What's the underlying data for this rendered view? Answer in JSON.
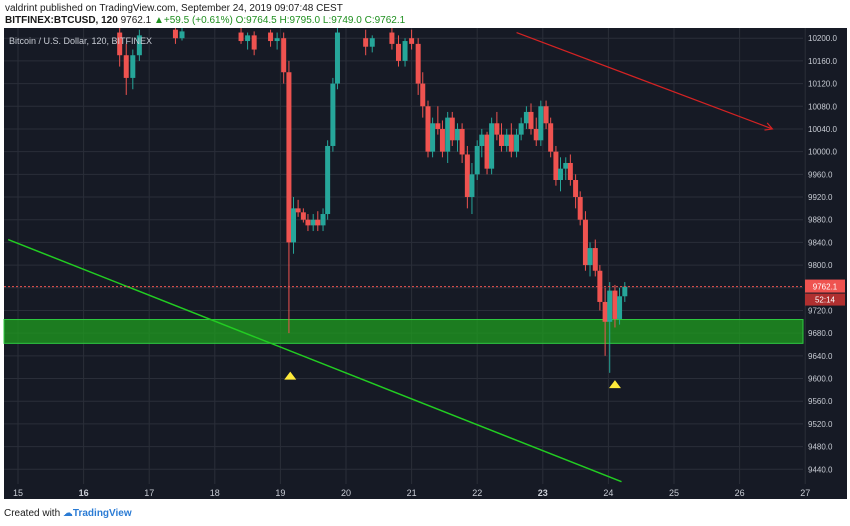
{
  "header": {
    "author": "valdrint",
    "published_text": " published on TradingView.com, September 24, 2019 09:07:48 CEST",
    "symbol": "BITFINEX:BTCUSD, 120",
    "last": "9762.1",
    "change": "+59.5 (+0.61%)",
    "open": "O:9764.5",
    "high": "H:9795.0",
    "low": "L:9749.0",
    "close": "C:9762.1"
  },
  "footer": {
    "created_with": "Created with",
    "brand": "TradingView"
  },
  "colors": {
    "background": "#161a25",
    "grid": "#2a2e39",
    "bull": "#26a69a",
    "bear": "#ef5350",
    "trendline": "#22cc22",
    "support_zone": "#1f9d1f",
    "arrow": "#d42323",
    "marker": "#ffeb3b",
    "price_line": "#ef5350",
    "axis_text": "#c8ccd4"
  },
  "chart_data": {
    "type": "candlestick",
    "title": "Bitcoin / U.S. Dollar, 120, BITFINEX",
    "x_ticks": [
      "15",
      "16",
      "17",
      "18",
      "19",
      "20",
      "21",
      "22",
      "23",
      "24",
      "25",
      "26",
      "27"
    ],
    "y_ticks": [
      "10200.0",
      "10160.0",
      "10120.0",
      "10080.0",
      "10040.0",
      "10000.0",
      "9960.0",
      "9920.0",
      "9880.0",
      "9840.0",
      "9800.0",
      "9760.0",
      "9720.0",
      "9680.0",
      "9640.0",
      "9600.0",
      "9560.0",
      "9520.0",
      "9480.0",
      "9440.0"
    ],
    "ylim": [
      9414,
      10218
    ],
    "last_price": "9762.1",
    "countdown": "52:14",
    "support_zone": [
      9662,
      9704
    ],
    "trendline": [
      [
        14.85,
        9845
      ],
      [
        24.2,
        9418
      ]
    ],
    "arrow": [
      [
        22.6,
        10210
      ],
      [
        26.5,
        10040
      ]
    ],
    "markers": [
      [
        19.15,
        9605
      ],
      [
        24.1,
        9590
      ]
    ],
    "candles": [
      [
        16.55,
        10210,
        10225,
        10150,
        10170
      ],
      [
        16.65,
        10170,
        10190,
        10100,
        10130
      ],
      [
        16.75,
        10130,
        10180,
        10110,
        10170
      ],
      [
        16.85,
        10170,
        10215,
        10160,
        10205
      ],
      [
        17.4,
        10215,
        10222,
        10190,
        10200
      ],
      [
        17.5,
        10200,
        10218,
        10196,
        10212
      ],
      [
        18.4,
        10210,
        10218,
        10190,
        10195
      ],
      [
        18.5,
        10195,
        10210,
        10180,
        10205
      ],
      [
        18.6,
        10205,
        10212,
        10170,
        10180
      ],
      [
        18.85,
        10210,
        10215,
        10185,
        10195
      ],
      [
        18.95,
        10195,
        10210,
        10180,
        10200
      ],
      [
        19.05,
        10200,
        10210,
        10120,
        10140
      ],
      [
        19.13,
        10140,
        10160,
        9680,
        9840
      ],
      [
        19.2,
        9840,
        9920,
        9820,
        9900
      ],
      [
        19.27,
        9900,
        9915,
        9885,
        9893
      ],
      [
        19.35,
        9893,
        9900,
        9875,
        9880
      ],
      [
        19.42,
        9880,
        9890,
        9860,
        9870
      ],
      [
        19.5,
        9870,
        9890,
        9860,
        9880
      ],
      [
        19.57,
        9880,
        9895,
        9860,
        9870
      ],
      [
        19.65,
        9870,
        9900,
        9860,
        9890
      ],
      [
        19.72,
        9890,
        10020,
        9880,
        10010
      ],
      [
        19.8,
        10010,
        10130,
        10000,
        10120
      ],
      [
        19.87,
        10120,
        10220,
        10110,
        10210
      ],
      [
        20.3,
        10200,
        10215,
        10170,
        10185
      ],
      [
        20.4,
        10185,
        10205,
        10175,
        10200
      ],
      [
        20.7,
        10210,
        10220,
        10180,
        10190
      ],
      [
        20.8,
        10190,
        10205,
        10150,
        10160
      ],
      [
        20.9,
        10160,
        10200,
        10150,
        10195
      ],
      [
        21.0,
        10200,
        10215,
        10180,
        10190
      ],
      [
        21.1,
        10190,
        10200,
        10100,
        10120
      ],
      [
        21.17,
        10120,
        10140,
        10060,
        10080
      ],
      [
        21.25,
        10080,
        10090,
        9990,
        10000
      ],
      [
        21.32,
        10000,
        10060,
        9990,
        10050
      ],
      [
        21.4,
        10050,
        10080,
        10030,
        10040
      ],
      [
        21.47,
        10040,
        10055,
        9990,
        10000
      ],
      [
        21.55,
        10000,
        10070,
        9980,
        10060
      ],
      [
        21.62,
        10060,
        10070,
        10010,
        10020
      ],
      [
        21.7,
        10020,
        10050,
        10000,
        10040
      ],
      [
        21.77,
        10040,
        10050,
        9980,
        9995
      ],
      [
        21.85,
        9995,
        10010,
        9900,
        9920
      ],
      [
        21.92,
        9920,
        9980,
        9890,
        9960
      ],
      [
        22.0,
        9960,
        10020,
        9950,
        10010
      ],
      [
        22.07,
        10010,
        10040,
        9990,
        10030
      ],
      [
        22.15,
        10030,
        10035,
        9960,
        9970
      ],
      [
        22.22,
        9970,
        10060,
        9960,
        10050
      ],
      [
        22.3,
        10050,
        10070,
        10020,
        10030
      ],
      [
        22.37,
        10030,
        10050,
        10000,
        10010
      ],
      [
        22.45,
        10010,
        10040,
        10000,
        10030
      ],
      [
        22.52,
        10030,
        10050,
        9990,
        10000
      ],
      [
        22.6,
        10000,
        10040,
        9990,
        10030
      ],
      [
        22.67,
        10030,
        10060,
        10020,
        10050
      ],
      [
        22.75,
        10050,
        10080,
        10040,
        10070
      ],
      [
        22.82,
        10070,
        10085,
        10030,
        10040
      ],
      [
        22.9,
        10040,
        10060,
        10010,
        10020
      ],
      [
        22.97,
        10020,
        10090,
        10010,
        10080
      ],
      [
        23.05,
        10080,
        10090,
        10040,
        10050
      ],
      [
        23.12,
        10050,
        10060,
        9990,
        10000
      ],
      [
        23.2,
        10000,
        10010,
        9940,
        9950
      ],
      [
        23.27,
        9950,
        9990,
        9930,
        9970
      ],
      [
        23.35,
        9970,
        9990,
        9950,
        9980
      ],
      [
        23.42,
        9980,
        9995,
        9940,
        9950
      ],
      [
        23.5,
        9950,
        9960,
        9900,
        9920
      ],
      [
        23.57,
        9920,
        9930,
        9870,
        9880
      ],
      [
        23.65,
        9880,
        9895,
        9790,
        9800
      ],
      [
        23.72,
        9800,
        9840,
        9780,
        9830
      ],
      [
        23.8,
        9830,
        9845,
        9780,
        9790
      ],
      [
        23.87,
        9790,
        9800,
        9720,
        9735
      ],
      [
        23.95,
        9735,
        9760,
        9640,
        9700
      ],
      [
        24.02,
        9700,
        9770,
        9610,
        9755
      ],
      [
        24.1,
        9755,
        9765,
        9690,
        9705
      ],
      [
        24.17,
        9705,
        9760,
        9695,
        9745
      ],
      [
        24.25,
        9745,
        9770,
        9735,
        9762
      ]
    ]
  }
}
